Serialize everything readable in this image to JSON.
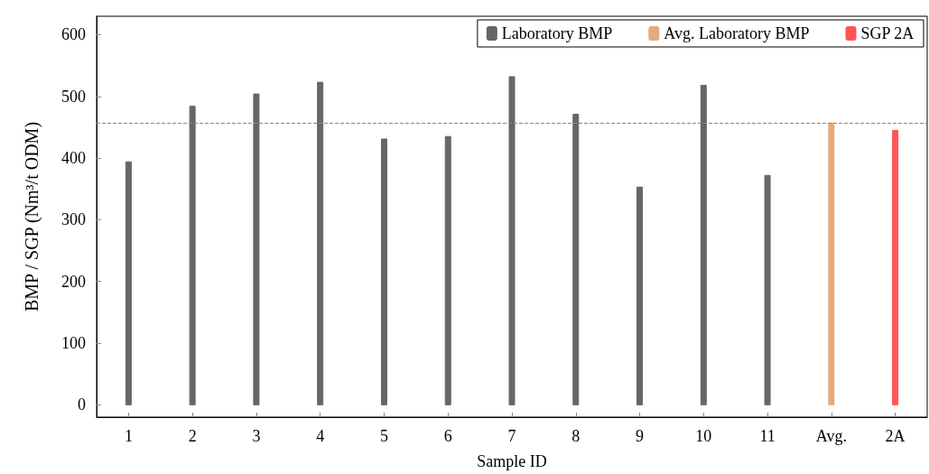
{
  "chart_data": {
    "type": "bar",
    "xlabel": "Sample ID",
    "ylabel": "BMP / SGP (Nm³/t ODM)",
    "categories": [
      "1",
      "2",
      "3",
      "4",
      "5",
      "6",
      "7",
      "8",
      "9",
      "10",
      "11",
      "Avg.",
      "2A"
    ],
    "series": [
      {
        "name": "Laboratory BMP",
        "color": "#666666",
        "values": [
          394,
          484,
          504,
          523,
          431,
          435,
          532,
          471,
          353,
          518,
          372,
          null,
          null
        ]
      },
      {
        "name": "Avg. Laboratory BMP",
        "color": "#e2ab7f",
        "values": [
          null,
          null,
          null,
          null,
          null,
          null,
          null,
          null,
          null,
          null,
          null,
          457,
          null
        ]
      },
      {
        "name": "SGP 2A",
        "color": "#ff5555",
        "values": [
          null,
          null,
          null,
          null,
          null,
          null,
          null,
          null,
          null,
          null,
          null,
          null,
          445
        ]
      }
    ],
    "ylim": [
      -20,
      630
    ],
    "yticks": [
      0,
      100,
      200,
      300,
      400,
      500,
      600
    ],
    "ref_lines": [
      {
        "axis": "y",
        "value": 457,
        "color": "#888888",
        "line_style": "dashed"
      }
    ],
    "legend": "top right"
  }
}
